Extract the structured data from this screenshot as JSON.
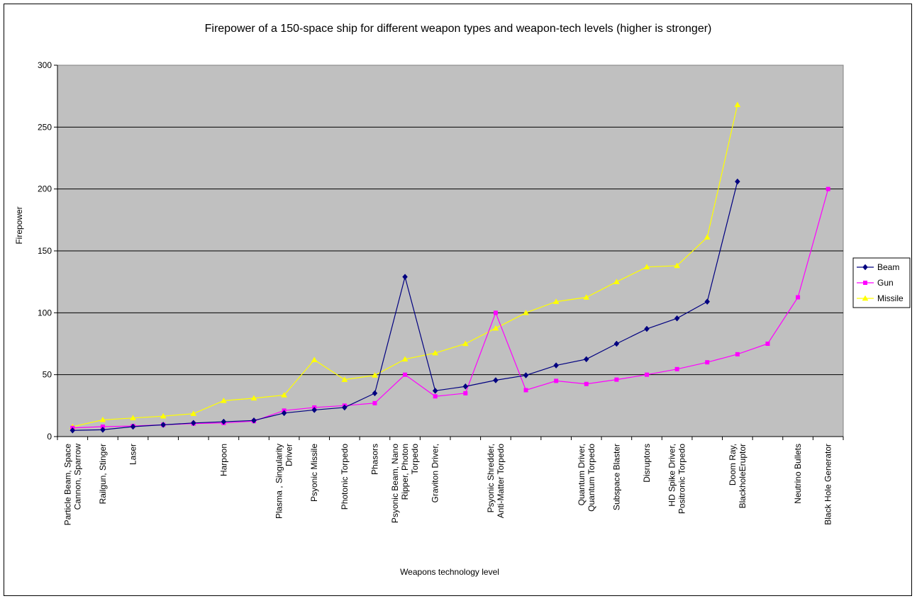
{
  "chart_data": {
    "type": "line",
    "title": "Firepower of a 150-space ship for different weapon types and weapon-tech levels (higher is stronger)",
    "xlabel": "Weapons technology level",
    "ylabel": "Firepower",
    "ylim": [
      0,
      300
    ],
    "yticks": [
      0,
      50,
      100,
      150,
      200,
      250,
      300
    ],
    "grid": true,
    "legend": "right",
    "plot_background": "#c0c0c0",
    "categories": [
      "Particle Beam, Space Cannon, Sparrow",
      "Railgun, Stinger",
      "Laser",
      "",
      "",
      "Harpoon",
      "",
      "Plasma , Singularity Driver",
      "Psyonic Missile",
      "Photonic Torpedo",
      "Phasors",
      "Psyonic Beam, Nano Ripper, Photon Torpedo",
      "Graviton Driver,",
      "",
      "Psyonic Shredder, Anti-Matter Torpedo",
      "",
      "",
      "Quantum Driver, Quantum Torpedo",
      "Subspace Blaster",
      "Disruptors",
      "HD Spike Driver, Positronic Torpedo",
      "",
      "Doom Ray, BlackholeEruptor",
      "",
      "Neutrino Bullets",
      "Black Hole Generator"
    ],
    "series": [
      {
        "name": "Beam",
        "color": "#000080",
        "marker": "diamond",
        "values": [
          5,
          5.5,
          8,
          9.5,
          11,
          12,
          13,
          19,
          21.5,
          23.5,
          35,
          129,
          37,
          40.5,
          45.5,
          49.5,
          57.5,
          62.5,
          75,
          87,
          95.5,
          109,
          206,
          null,
          null,
          null
        ]
      },
      {
        "name": "Gun",
        "color": "#ff00ff",
        "marker": "square",
        "values": [
          7,
          8,
          8.5,
          9.5,
          10.5,
          11,
          12.5,
          21,
          23.5,
          25,
          27,
          50,
          32.5,
          35,
          100,
          37.5,
          45,
          42.5,
          46,
          50,
          54.5,
          60,
          66.5,
          75,
          112.5,
          200
        ]
      },
      {
        "name": "Missile",
        "color": "#ffff00",
        "marker": "triangle",
        "values": [
          8,
          13.5,
          15,
          16.5,
          18.5,
          29,
          31,
          33.5,
          62,
          46,
          49.5,
          62.5,
          67.5,
          75,
          87.5,
          100,
          109,
          112.5,
          125,
          137,
          138,
          161,
          268,
          null,
          null,
          null
        ]
      }
    ]
  }
}
